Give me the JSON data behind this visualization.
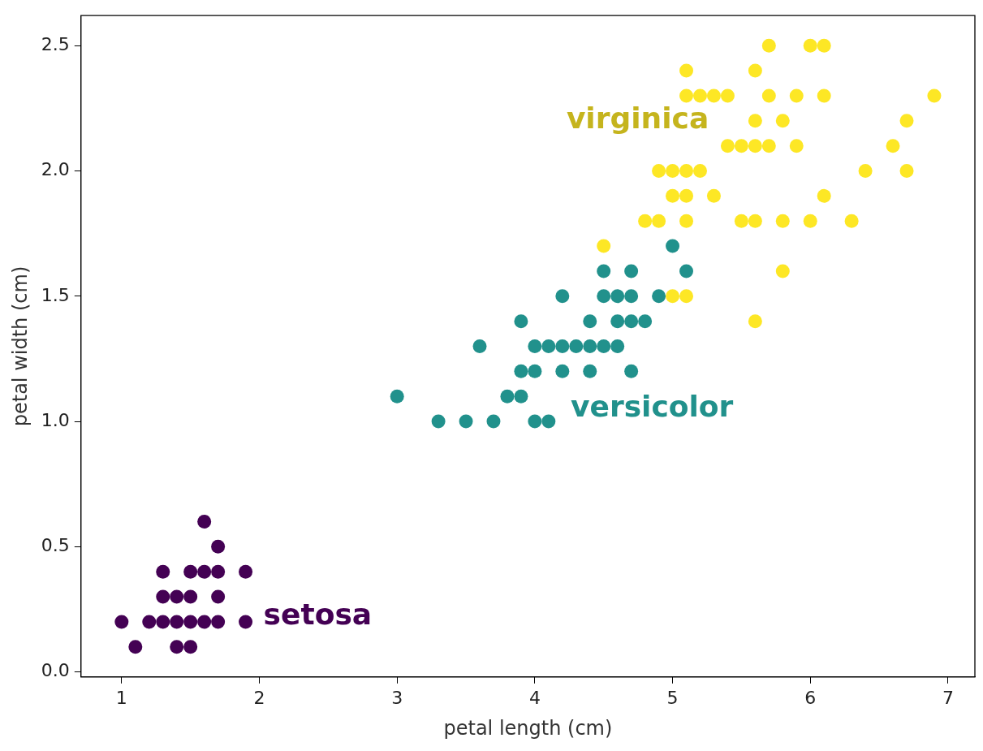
{
  "chart_data": {
    "type": "scatter",
    "xlabel": "petal length (cm)",
    "ylabel": "petal width (cm)",
    "xlim": [
      0.705,
      7.195
    ],
    "ylim": [
      -0.02,
      2.62
    ],
    "xticks": [
      1,
      2,
      3,
      4,
      5,
      6,
      7
    ],
    "yticks": [
      {
        "value": 0,
        "label": "0.0"
      },
      {
        "value": 0.5,
        "label": "0.5"
      },
      {
        "value": 1,
        "label": "1.0"
      },
      {
        "value": 1.5,
        "label": "1.5"
      },
      {
        "value": 2,
        "label": "2.0"
      },
      {
        "value": 2.5,
        "label": "2.5"
      }
    ],
    "grid": false,
    "legend": false,
    "marker": "circle",
    "series": [
      {
        "name": "setosa",
        "color": "#440154",
        "x": [
          1.0,
          1.1,
          1.2,
          1.3,
          1.3,
          1.3,
          1.4,
          1.4,
          1.4,
          1.5,
          1.5,
          1.5,
          1.5,
          1.6,
          1.6,
          1.6,
          1.7,
          1.7,
          1.7,
          1.7,
          1.9,
          1.9
        ],
        "values": [
          0.2,
          0.1,
          0.2,
          0.2,
          0.3,
          0.4,
          0.1,
          0.2,
          0.3,
          0.1,
          0.2,
          0.3,
          0.4,
          0.2,
          0.4,
          0.6,
          0.2,
          0.3,
          0.4,
          0.5,
          0.2,
          0.4
        ]
      },
      {
        "name": "versicolor",
        "color": "#21918c",
        "x": [
          3.0,
          3.3,
          3.5,
          3.6,
          3.7,
          3.8,
          3.9,
          3.9,
          3.9,
          4.0,
          4.0,
          4.0,
          4.1,
          4.1,
          4.2,
          4.2,
          4.2,
          4.3,
          4.4,
          4.4,
          4.4,
          4.5,
          4.5,
          4.5,
          4.6,
          4.6,
          4.6,
          4.7,
          4.7,
          4.7,
          4.7,
          4.8,
          4.9,
          5.0,
          5.1
        ],
        "values": [
          1.1,
          1.0,
          1.0,
          1.3,
          1.0,
          1.1,
          1.1,
          1.2,
          1.4,
          1.0,
          1.2,
          1.3,
          1.0,
          1.3,
          1.2,
          1.3,
          1.5,
          1.3,
          1.2,
          1.3,
          1.4,
          1.3,
          1.5,
          1.6,
          1.3,
          1.4,
          1.5,
          1.2,
          1.4,
          1.5,
          1.6,
          1.4,
          1.5,
          1.7,
          1.6
        ]
      },
      {
        "name": "virginica",
        "color": "#fde725",
        "x": [
          4.5,
          4.8,
          4.9,
          4.9,
          5.0,
          5.0,
          5.0,
          5.1,
          5.1,
          5.1,
          5.1,
          5.1,
          5.1,
          5.2,
          5.2,
          5.3,
          5.3,
          5.4,
          5.4,
          5.5,
          5.5,
          5.6,
          5.6,
          5.6,
          5.6,
          5.6,
          5.7,
          5.7,
          5.7,
          5.8,
          5.8,
          5.8,
          5.9,
          5.9,
          6.0,
          6.0,
          6.1,
          6.1,
          6.1,
          6.3,
          6.4,
          6.6,
          6.7,
          6.7,
          6.9
        ],
        "values": [
          1.7,
          1.8,
          1.8,
          2.0,
          1.5,
          1.9,
          2.0,
          1.5,
          1.8,
          1.9,
          2.0,
          2.3,
          2.4,
          2.0,
          2.3,
          1.9,
          2.3,
          2.1,
          2.3,
          1.8,
          2.1,
          1.4,
          1.8,
          2.1,
          2.2,
          2.4,
          2.1,
          2.3,
          2.5,
          1.6,
          1.8,
          2.2,
          2.1,
          2.3,
          1.8,
          2.5,
          1.9,
          2.3,
          2.5,
          1.8,
          2.0,
          2.1,
          2.0,
          2.2,
          2.3
        ]
      }
    ]
  }
}
